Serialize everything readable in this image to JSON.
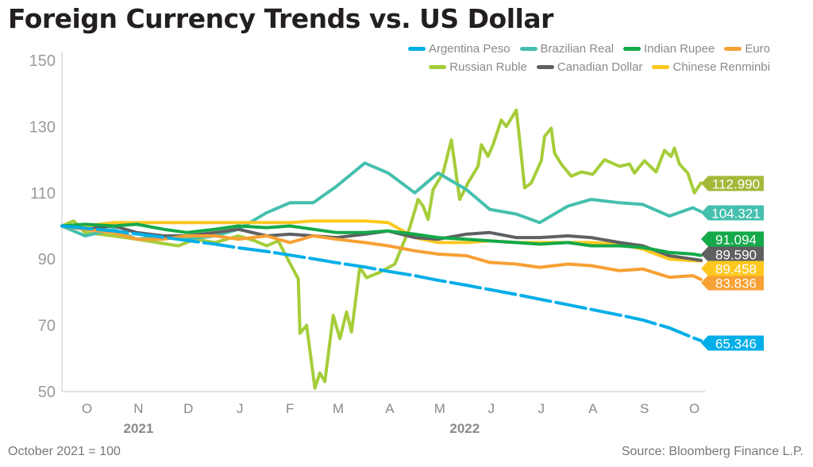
{
  "title": "Foreign Currency Trends vs. US Dollar",
  "note": "October 2021 = 100",
  "source": "Source: Bloomberg Finance L.P.",
  "chart_data": {
    "type": "line",
    "title": "Foreign Currency Trends vs. US Dollar",
    "ylim": [
      50,
      150
    ],
    "yticks": [
      "150",
      "130",
      "110",
      "90",
      "70",
      "50"
    ],
    "ytick_values": [
      150,
      130,
      110,
      90,
      70,
      50
    ],
    "xlim": [
      "2021-10-01",
      "2022-10-22"
    ],
    "month_labels": [
      "O",
      "N",
      "D",
      "J",
      "F",
      "M",
      "A",
      "M",
      "J",
      "J",
      "A",
      "S",
      "O"
    ],
    "month_dates": [
      "2021-10-16",
      "2021-11-16",
      "2021-12-16",
      "2022-01-16",
      "2022-02-15",
      "2022-03-16",
      "2022-04-16",
      "2022-05-16",
      "2022-06-16",
      "2022-07-16",
      "2022-08-16",
      "2022-09-16",
      "2022-10-16"
    ],
    "year_labels": [
      "2021",
      "2022"
    ],
    "year_dates": [
      "2021-11-16",
      "2022-05-31"
    ],
    "grid": false,
    "legend_position": "top-right",
    "x": [
      "2021-10-01",
      "2021-10-15",
      "2021-11-01",
      "2021-11-15",
      "2021-12-01",
      "2021-12-15",
      "2022-01-01",
      "2022-01-15",
      "2022-02-01",
      "2022-02-15",
      "2022-03-01",
      "2022-03-15",
      "2022-04-01",
      "2022-04-15",
      "2022-05-01",
      "2022-05-15",
      "2022-06-01",
      "2022-06-15",
      "2022-07-01",
      "2022-07-15",
      "2022-08-01",
      "2022-08-15",
      "2022-09-01",
      "2022-09-15",
      "2022-10-01",
      "2022-10-15",
      "2022-10-20"
    ],
    "series": [
      {
        "name": "Argentina Peso",
        "color": "#00aee8",
        "tag_color": "#00aee8",
        "end_label": "65.346",
        "dashed": true,
        "values": [
          100,
          99.3,
          98.5,
          97.6,
          96.6,
          95.6,
          94.5,
          93.4,
          92.3,
          91.2,
          90.1,
          88.9,
          87.6,
          86.3,
          85,
          83.6,
          82.1,
          80.8,
          79.3,
          77.9,
          76.2,
          74.8,
          73.1,
          71.6,
          69.2,
          66.3,
          65.346
        ]
      },
      {
        "name": "Brazilian Real",
        "color": "#45bfae",
        "tag_color": "#45bfae",
        "end_label": "104.321",
        "values": [
          100,
          97,
          99,
          96,
          97,
          96,
          97,
          99,
          104,
          107,
          107,
          112,
          119,
          116,
          110,
          116,
          111,
          105,
          103.6,
          101,
          106,
          108,
          107,
          106.5,
          103,
          105.5,
          104.321
        ]
      },
      {
        "name": "Indian Rupee",
        "color": "#14a94a",
        "tag_color": "#14a94a",
        "end_label": "91.094",
        "values": [
          100,
          100.5,
          100,
          100.5,
          99,
          98,
          99,
          100,
          99.5,
          100,
          99,
          98,
          98,
          98.5,
          97.5,
          96.5,
          96,
          95.5,
          95,
          94.5,
          95,
          94,
          94,
          93.5,
          92,
          91.5,
          91.094
        ]
      },
      {
        "name": "Euro",
        "color": "#f7a034",
        "tag_color": "#f7a034",
        "end_label": "83.836",
        "values": [
          100,
          99,
          98,
          96,
          96,
          97,
          97,
          96,
          97,
          95,
          97,
          96,
          95,
          94,
          92.5,
          91.5,
          91,
          89,
          88.5,
          87.5,
          88.5,
          88,
          86.5,
          87,
          84.5,
          85,
          83.836
        ]
      },
      {
        "name": "Russian Ruble",
        "color": "#a5cd39",
        "tag_color": "#a4b83a",
        "end_label": "112.990",
        "x": [
          "2021-10-01",
          "2021-10-08",
          "2021-10-15",
          "2021-11-01",
          "2021-11-15",
          "2021-12-01",
          "2021-12-10",
          "2021-12-20",
          "2022-01-01",
          "2022-01-15",
          "2022-01-25",
          "2022-02-01",
          "2022-02-08",
          "2022-02-12",
          "2022-02-20",
          "2022-02-21",
          "2022-02-25",
          "2022-03-02",
          "2022-03-05",
          "2022-03-08",
          "2022-03-13",
          "2022-03-17",
          "2022-03-21",
          "2022-03-24",
          "2022-03-29",
          "2022-04-02",
          "2022-04-10",
          "2022-04-19",
          "2022-04-28",
          "2022-05-03",
          "2022-05-06",
          "2022-05-09",
          "2022-05-12",
          "2022-05-18",
          "2022-05-23",
          "2022-05-28",
          "2022-06-02",
          "2022-06-08",
          "2022-06-10",
          "2022-06-14",
          "2022-06-17",
          "2022-06-22",
          "2022-06-25",
          "2022-07-01",
          "2022-07-03",
          "2022-07-06",
          "2022-07-10",
          "2022-07-16",
          "2022-07-18",
          "2022-07-22",
          "2022-07-24",
          "2022-07-28",
          "2022-08-03",
          "2022-08-09",
          "2022-08-16",
          "2022-08-23",
          "2022-09-01",
          "2022-09-07",
          "2022-09-10",
          "2022-09-16",
          "2022-09-23",
          "2022-09-28",
          "2022-10-02",
          "2022-10-04",
          "2022-10-07",
          "2022-10-12",
          "2022-10-16",
          "2022-10-20"
        ],
        "values": [
          100,
          101.5,
          98,
          97,
          96,
          94.7,
          94,
          96,
          95,
          97,
          95.5,
          94,
          95.5,
          91.6,
          84,
          67.6,
          70,
          51,
          55.6,
          53,
          73,
          66,
          74,
          68,
          87.5,
          84.4,
          86,
          88.5,
          99.5,
          108,
          106,
          102,
          111,
          116,
          126,
          108,
          113,
          118,
          124.5,
          121,
          124.5,
          132,
          130,
          135,
          126,
          111.5,
          113,
          119.7,
          127,
          129.5,
          122,
          118.7,
          115,
          116.3,
          115.6,
          120,
          118,
          118.7,
          116,
          119.7,
          116.3,
          122.8,
          121,
          123.5,
          118.7,
          116,
          110,
          112.99
        ]
      },
      {
        "name": "Canadian Dollar",
        "color": "#5f6062",
        "tag_color": "#5f6062",
        "end_label": "89.590",
        "values": [
          100,
          99,
          100,
          98,
          97,
          97,
          98,
          99,
          97,
          97.5,
          97,
          96.5,
          97.5,
          98.5,
          96.5,
          96,
          97.5,
          98,
          96.5,
          96.5,
          97,
          96.5,
          95,
          94,
          91,
          90,
          89.59
        ]
      },
      {
        "name": "Chinese Renminbi",
        "color": "#fcc820",
        "tag_color": "#fcc820",
        "end_label": "89.458",
        "values": [
          100,
          100,
          101,
          101,
          101,
          101,
          101,
          101,
          101,
          101,
          101.5,
          101.5,
          101.5,
          101,
          96.5,
          95,
          95,
          95.5,
          95,
          95,
          95,
          95,
          94.5,
          93,
          90,
          89.5,
          89.458
        ]
      }
    ]
  }
}
